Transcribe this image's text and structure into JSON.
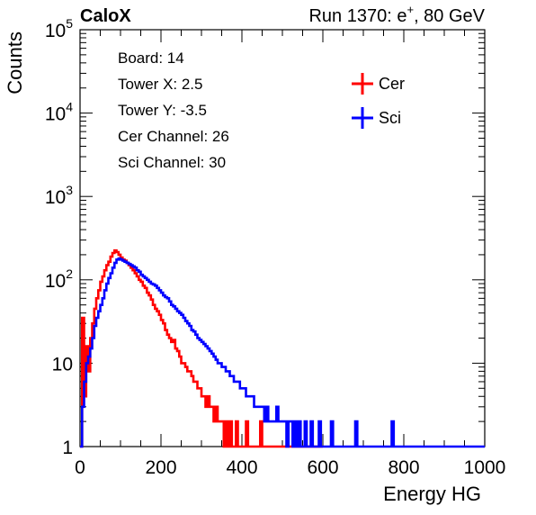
{
  "chart_data": {
    "type": "line",
    "title_left": "CaloX",
    "title_right": "Run 1370: e",
    "title_right_sup": "+",
    "title_right_end": ", 80 GeV",
    "xlabel": "Energy HG",
    "ylabel": "Counts",
    "xlim": [
      0,
      1000
    ],
    "ylim": [
      1,
      100000
    ],
    "yscale": "log",
    "xticks": [
      0,
      200,
      400,
      600,
      800,
      1000
    ],
    "xtick_labels": [
      "0",
      "200",
      "400",
      "600",
      "800",
      "1000"
    ],
    "yticks": [
      1,
      10,
      100,
      1000,
      10000,
      100000
    ],
    "ytick_labels": [
      {
        "base": "1",
        "exp": ""
      },
      {
        "base": "10",
        "exp": ""
      },
      {
        "base": "10",
        "exp": "2"
      },
      {
        "base": "10",
        "exp": "3"
      },
      {
        "base": "10",
        "exp": "4"
      },
      {
        "base": "10",
        "exp": "5"
      }
    ],
    "info_lines": [
      "Board: 14",
      "Tower X: 2.5",
      "Tower Y: -3.5",
      "Cer Channel: 26",
      "Sci Channel: 30"
    ],
    "legend_position": "top-right",
    "series": [
      {
        "name": "Cer",
        "color": "#ff0000",
        "x": [
          0,
          5,
          10,
          15,
          20,
          25,
          30,
          35,
          40,
          45,
          50,
          55,
          60,
          65,
          70,
          75,
          80,
          85,
          90,
          95,
          100,
          105,
          110,
          115,
          120,
          125,
          130,
          135,
          140,
          145,
          150,
          155,
          160,
          165,
          170,
          175,
          180,
          185,
          190,
          195,
          200,
          205,
          210,
          215,
          220,
          225,
          230,
          235,
          240,
          245,
          250,
          255,
          260,
          265,
          270,
          275,
          280,
          285,
          290,
          295,
          300,
          305,
          310,
          315,
          320,
          325,
          330,
          335,
          340,
          345,
          350,
          355,
          360,
          365,
          370,
          375,
          380,
          385,
          390,
          395,
          400,
          405,
          410,
          415,
          420,
          425,
          430,
          435,
          440,
          445,
          450,
          455,
          460,
          465,
          470,
          475,
          480,
          485,
          490,
          495,
          500,
          505,
          510,
          515,
          520,
          525,
          530,
          535,
          540,
          545,
          550,
          555,
          560,
          565,
          570,
          575,
          580,
          585,
          590,
          595
        ],
        "y": [
          1,
          35,
          4,
          16,
          8,
          20,
          30,
          45,
          60,
          75,
          95,
          110,
          130,
          150,
          165,
          190,
          210,
          225,
          215,
          200,
          185,
          175,
          170,
          160,
          150,
          140,
          130,
          120,
          110,
          100,
          95,
          85,
          80,
          70,
          65,
          58,
          50,
          45,
          42,
          38,
          33,
          30,
          25,
          22,
          20,
          18,
          19,
          15,
          14,
          12,
          10,
          10,
          9,
          8,
          8,
          7,
          6,
          6,
          5,
          5,
          4,
          4,
          3,
          4,
          3,
          3,
          2,
          3,
          2,
          2,
          2,
          1,
          2,
          1,
          2,
          1,
          1,
          2,
          1,
          1,
          1,
          1,
          2,
          1,
          1,
          1,
          1,
          1,
          1,
          2,
          1,
          1,
          1,
          1,
          1,
          1,
          1,
          1,
          1,
          1,
          1,
          1,
          1,
          1,
          1,
          1,
          1,
          1,
          1,
          1,
          1,
          1,
          1,
          1,
          1,
          1,
          1,
          1,
          1,
          1
        ]
      },
      {
        "name": "Sci",
        "color": "#0000ff",
        "x": [
          0,
          5,
          10,
          15,
          20,
          25,
          30,
          35,
          40,
          45,
          50,
          55,
          60,
          65,
          70,
          75,
          80,
          85,
          90,
          95,
          100,
          105,
          110,
          115,
          120,
          125,
          130,
          135,
          140,
          145,
          150,
          155,
          160,
          165,
          170,
          175,
          180,
          185,
          190,
          195,
          200,
          205,
          210,
          215,
          220,
          225,
          230,
          235,
          240,
          245,
          250,
          255,
          260,
          265,
          270,
          275,
          280,
          285,
          290,
          295,
          300,
          305,
          310,
          315,
          320,
          325,
          330,
          335,
          340,
          345,
          350,
          355,
          360,
          365,
          370,
          375,
          380,
          385,
          390,
          395,
          400,
          405,
          410,
          415,
          420,
          425,
          430,
          435,
          440,
          445,
          450,
          455,
          460,
          465,
          470,
          475,
          480,
          485,
          490,
          495,
          500,
          505,
          510,
          515,
          520,
          525,
          530,
          535,
          540,
          545,
          550,
          555,
          560,
          565,
          570,
          575,
          580,
          585,
          590,
          595,
          600,
          605,
          610,
          615,
          620,
          625,
          630,
          635,
          640,
          645,
          650,
          655,
          660,
          665,
          670,
          675,
          680,
          685,
          690,
          695,
          700,
          705,
          710,
          715,
          720,
          725,
          730,
          735,
          740,
          745,
          750,
          755,
          760,
          765,
          770,
          775,
          780,
          785,
          790,
          795,
          800,
          805,
          810,
          815,
          820,
          825,
          830,
          835,
          840,
          845,
          850,
          855,
          860,
          865,
          870,
          875,
          880,
          885,
          890,
          895,
          900,
          905,
          910,
          915,
          920,
          925,
          930,
          935,
          940,
          945,
          950,
          955,
          960,
          965,
          970,
          975,
          980,
          985,
          990,
          995
        ],
        "y": [
          1,
          3,
          6,
          10,
          12,
          15,
          20,
          28,
          35,
          42,
          50,
          60,
          75,
          90,
          105,
          120,
          140,
          160,
          175,
          180,
          175,
          170,
          165,
          160,
          155,
          150,
          145,
          140,
          130,
          125,
          115,
          110,
          105,
          100,
          95,
          90,
          88,
          85,
          80,
          75,
          70,
          65,
          62,
          60,
          55,
          50,
          48,
          45,
          42,
          40,
          38,
          35,
          32,
          30,
          28,
          25,
          24,
          22,
          20,
          19,
          18,
          17,
          16,
          15,
          14,
          13,
          12,
          11,
          10,
          10,
          9,
          9,
          8,
          8,
          7,
          7,
          6,
          6,
          6,
          5,
          5,
          5,
          4,
          4,
          4,
          4,
          3,
          3,
          3,
          3,
          3,
          2,
          3,
          2,
          2,
          2,
          2,
          3,
          2,
          2,
          2,
          2,
          1,
          2,
          2,
          1,
          2,
          1,
          2,
          1,
          1,
          2,
          1,
          1,
          2,
          1,
          1,
          1,
          2,
          1,
          1,
          1,
          1,
          1,
          2,
          1,
          1,
          1,
          1,
          1,
          1,
          1,
          1,
          1,
          1,
          1,
          2,
          1,
          1,
          1,
          1,
          1,
          1,
          1,
          1,
          1,
          1,
          1,
          1,
          1,
          1,
          1,
          1,
          1,
          2,
          1,
          1,
          1,
          1,
          1,
          1,
          1,
          1,
          1,
          1,
          1,
          1,
          1,
          1,
          1,
          1,
          1,
          1,
          1,
          1,
          1,
          1,
          1,
          1,
          1,
          1,
          1,
          1,
          1,
          1,
          1,
          1,
          1,
          1,
          1,
          1,
          1,
          1,
          1,
          1,
          1,
          1,
          1,
          1,
          1
        ]
      }
    ]
  }
}
